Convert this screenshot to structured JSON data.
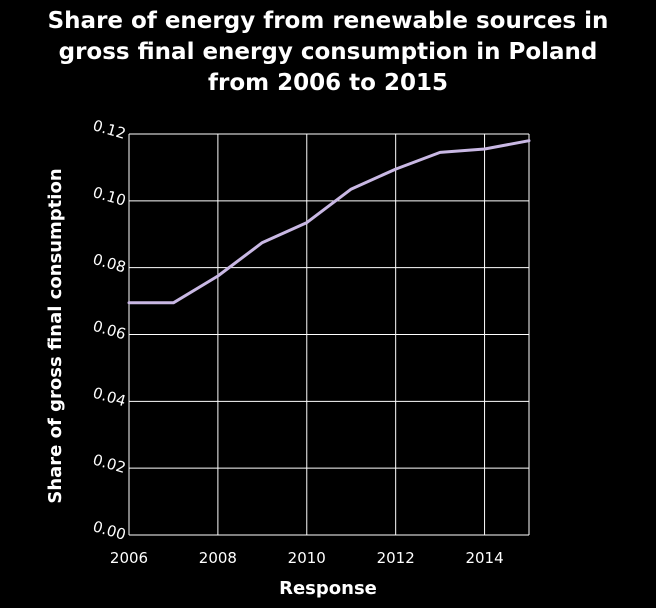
{
  "chart_data": {
    "type": "line",
    "title_lines": [
      "Share of energy from renewable sources in",
      "gross final energy consumption in Poland",
      "from 2006 to 2015"
    ],
    "xlabel": "Response",
    "ylabel": "Share of gross final consumption",
    "xlim": [
      2006,
      2015
    ],
    "ylim": [
      0,
      0.12
    ],
    "x_ticks": [
      2006,
      2008,
      2010,
      2012,
      2014
    ],
    "x_tick_labels": [
      "2006",
      "2008",
      "2010",
      "2012",
      "2014"
    ],
    "y_ticks": [
      0,
      0.02,
      0.04,
      0.06,
      0.08,
      0.1,
      0.12
    ],
    "y_tick_labels": [
      "0.00",
      "0.02",
      "0.04",
      "0.06",
      "0.08",
      "0.10",
      "0.12"
    ],
    "grid": true,
    "series": [
      {
        "x": [
          2006,
          2007,
          2008,
          2009,
          2010,
          2011,
          2012,
          2013,
          2014,
          2015
        ],
        "values": [
          0.0695,
          0.0695,
          0.0775,
          0.0875,
          0.0935,
          0.1035,
          0.1095,
          0.1145,
          0.1155,
          0.118
        ],
        "color": "#c9b8e4"
      }
    ]
  },
  "colors": {
    "background": "#000000",
    "grid": "#ffffff",
    "text": "#ffffff",
    "line": "#c9b8e4"
  }
}
